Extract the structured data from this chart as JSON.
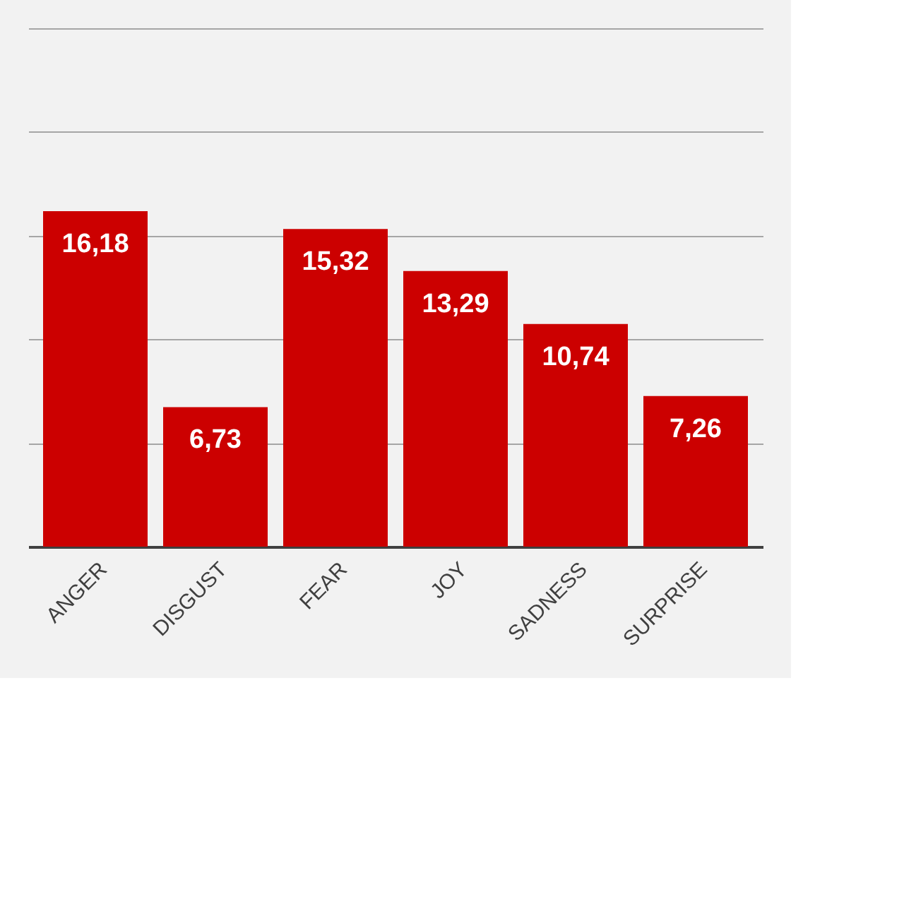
{
  "chart_data": {
    "type": "bar",
    "categories": [
      "ANGER",
      "DISGUST",
      "FEAR",
      "JOY",
      "SADNESS",
      "SURPRISE"
    ],
    "values": [
      16.18,
      6.73,
      15.32,
      13.29,
      10.74,
      7.26
    ],
    "value_labels": [
      "16,18",
      "6,73",
      "15,32",
      "13,29",
      "10,74",
      "7,26"
    ],
    "color": "#cc0000",
    "ylim": [
      0,
      25
    ],
    "yticks": [
      0,
      5,
      10,
      15,
      20,
      25
    ],
    "grid": "y",
    "tick_labels": "x"
  }
}
